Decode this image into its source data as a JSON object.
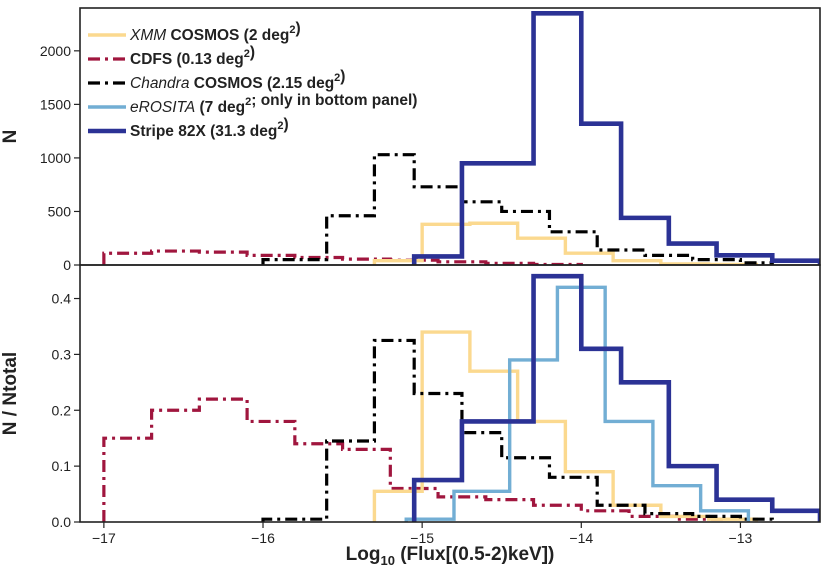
{
  "chart_data": {
    "type": "step-histogram",
    "xlabel": {
      "prefix": "Log",
      "sub": "10",
      "rest": " (Flux[(0.5-2)keV])"
    },
    "xlim": [
      -17.15,
      -12.5
    ],
    "x_ticks": [
      -17,
      -16,
      -15,
      -14,
      -13
    ],
    "x_tick_labels": [
      "−17",
      "−16",
      "−15",
      "−14",
      "−13"
    ],
    "legend": [
      {
        "key": "xmm",
        "parts": [
          {
            "t": "XMM",
            "it": true
          },
          {
            "t": " COSMOS (2 deg"
          },
          {
            "t": "2",
            "sup": true
          },
          {
            "t": ")"
          }
        ]
      },
      {
        "key": "cdfs",
        "parts": [
          {
            "t": "CDFS  (0.13 deg"
          },
          {
            "t": "2",
            "sup": true
          },
          {
            "t": ")"
          }
        ]
      },
      {
        "key": "chandra",
        "parts": [
          {
            "t": "Chandra",
            "it": true
          },
          {
            "t": " COSMOS (2.15 deg"
          },
          {
            "t": "2",
            "sup": true
          },
          {
            "t": ")"
          }
        ]
      },
      {
        "key": "erosita",
        "parts": [
          {
            "t": "eROSITA",
            "it": true
          },
          {
            "t": " (7 deg"
          },
          {
            "t": "2",
            "sup": true
          },
          {
            "t": "; only in bottom panel)"
          }
        ]
      },
      {
        "key": "s82x",
        "parts": [
          {
            "t": "Stripe 82X (31.3 deg"
          },
          {
            "t": "2",
            "sup": true
          },
          {
            "t": ")"
          }
        ]
      }
    ],
    "panels": [
      {
        "id": "top",
        "ylabel": "N",
        "ylim": [
          0,
          2400
        ],
        "y_ticks": [
          0,
          500,
          1000,
          1500,
          2000
        ],
        "y_tick_labels": [
          "0",
          "500",
          "1000",
          "1500",
          "2000"
        ],
        "series": [
          {
            "key": "cdfs",
            "name": "CDFS",
            "color": "#a0163e",
            "dash": "12,5,3,5",
            "width": 3.2,
            "edges": [
              -17.0,
              -16.7,
              -16.4,
              -16.1,
              -15.8,
              -15.5,
              -15.2,
              -14.9,
              -14.6,
              -14.3,
              -14.0
            ],
            "values": [
              110,
              130,
              120,
              90,
              70,
              55,
              45,
              30,
              15,
              5
            ]
          },
          {
            "key": "xmm",
            "name": "XMM COSMOS",
            "color": "#fbd98f",
            "dash": "",
            "width": 3.4,
            "edges": [
              -15.3,
              -15.0,
              -14.7,
              -14.4,
              -14.1,
              -13.8,
              -13.5,
              -13.2,
              -12.9
            ],
            "values": [
              40,
              380,
              390,
              250,
              110,
              40,
              10,
              5
            ]
          },
          {
            "key": "chandra",
            "name": "Chandra COSMOS",
            "color": "#000000",
            "dash": "12,5,3,5",
            "width": 3.2,
            "edges": [
              -16.0,
              -15.6,
              -15.3,
              -15.05,
              -14.75,
              -14.5,
              -14.2,
              -13.9,
              -13.6,
              -13.3,
              -13.0,
              -12.8
            ],
            "values": [
              50,
              460,
              1030,
              730,
              590,
              500,
              310,
              140,
              90,
              50,
              20
            ]
          },
          {
            "key": "s82x",
            "name": "Stripe 82X",
            "color": "#2b3295",
            "dash": "",
            "width": 4.6,
            "edges": [
              -15.05,
              -14.75,
              -14.3,
              -14.0,
              -13.75,
              -13.45,
              -13.15,
              -12.8,
              -12.5
            ],
            "values": [
              80,
              950,
              2350,
              1320,
              440,
              200,
              90,
              40
            ]
          }
        ]
      },
      {
        "id": "bottom",
        "ylabel": "N / Ntotal",
        "ylim": [
          0,
          0.46
        ],
        "y_ticks": [
          0.0,
          0.1,
          0.2,
          0.3,
          0.4
        ],
        "y_tick_labels": [
          "0.0",
          "0.1",
          "0.2",
          "0.3",
          "0.4"
        ],
        "series": [
          {
            "key": "cdfs",
            "name": "CDFS",
            "color": "#a0163e",
            "dash": "12,5,3,5",
            "width": 3.2,
            "edges": [
              -17.0,
              -16.7,
              -16.4,
              -16.1,
              -15.8,
              -15.5,
              -15.2,
              -14.9,
              -14.6,
              -14.3,
              -14.0,
              -13.7,
              -13.4,
              -13.1
            ],
            "values": [
              0.15,
              0.2,
              0.22,
              0.18,
              0.14,
              0.13,
              0.06,
              0.045,
              0.04,
              0.03,
              0.02,
              0.01,
              0.005
            ]
          },
          {
            "key": "xmm",
            "name": "XMM COSMOS",
            "color": "#fbd98f",
            "dash": "",
            "width": 3.4,
            "edges": [
              -15.3,
              -15.0,
              -14.7,
              -14.4,
              -14.1,
              -13.8,
              -13.5,
              -13.2,
              -12.9
            ],
            "values": [
              0.055,
              0.34,
              0.27,
              0.18,
              0.09,
              0.03,
              0.01,
              0.005
            ]
          },
          {
            "key": "chandra",
            "name": "Chandra COSMOS",
            "color": "#000000",
            "dash": "12,5,3,5",
            "width": 3.2,
            "edges": [
              -16.0,
              -15.6,
              -15.3,
              -15.05,
              -14.75,
              -14.5,
              -14.2,
              -13.9,
              -13.6,
              -13.3,
              -13.0,
              -12.8
            ],
            "values": [
              0.005,
              0.145,
              0.325,
              0.23,
              0.16,
              0.115,
              0.08,
              0.03,
              0.015,
              0.01,
              0.005
            ]
          },
          {
            "key": "erosita",
            "name": "eROSITA",
            "color": "#72aed4",
            "dash": "",
            "width": 3.4,
            "edges": [
              -15.1,
              -14.8,
              -14.45,
              -14.15,
              -13.85,
              -13.55,
              -13.25,
              -12.95
            ],
            "values": [
              0.005,
              0.055,
              0.29,
              0.42,
              0.18,
              0.065,
              0.02
            ]
          },
          {
            "key": "s82x",
            "name": "Stripe 82X",
            "color": "#2b3295",
            "dash": "",
            "width": 4.6,
            "edges": [
              -15.05,
              -14.75,
              -14.3,
              -14.0,
              -13.75,
              -13.45,
              -13.15,
              -12.8,
              -12.5
            ],
            "values": [
              0.075,
              0.18,
              0.44,
              0.31,
              0.25,
              0.1,
              0.04,
              0.02
            ]
          }
        ]
      }
    ]
  }
}
